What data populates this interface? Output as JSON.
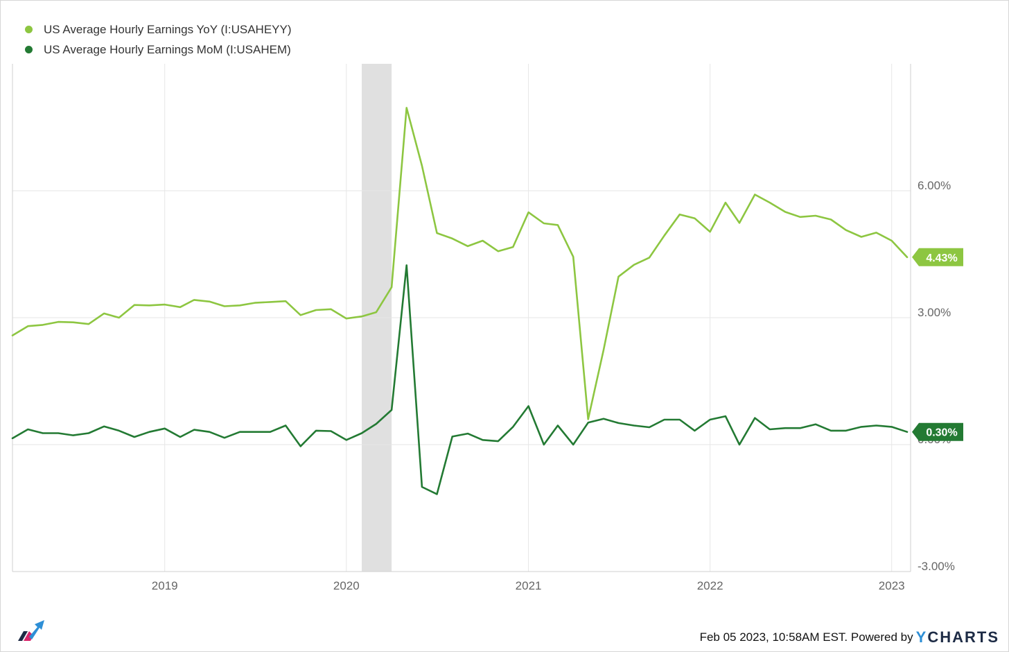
{
  "chart_data": {
    "type": "line",
    "series": [
      {
        "name": "US Average Hourly Earnings YoY (I:USAHEYY)",
        "color": "#8dc641",
        "end_label": "4.43%",
        "points": [
          [
            "2018-03-01",
            2.58
          ],
          [
            "2018-04-01",
            2.8
          ],
          [
            "2018-05-01",
            2.83
          ],
          [
            "2018-06-01",
            2.9
          ],
          [
            "2018-07-01",
            2.89
          ],
          [
            "2018-08-01",
            2.85
          ],
          [
            "2018-09-01",
            3.1
          ],
          [
            "2018-10-01",
            3.0
          ],
          [
            "2018-11-01",
            3.3
          ],
          [
            "2018-12-01",
            3.29
          ],
          [
            "2019-01-01",
            3.31
          ],
          [
            "2019-02-01",
            3.25
          ],
          [
            "2019-03-01",
            3.42
          ],
          [
            "2019-04-01",
            3.38
          ],
          [
            "2019-05-01",
            3.27
          ],
          [
            "2019-06-01",
            3.29
          ],
          [
            "2019-07-01",
            3.35
          ],
          [
            "2019-08-01",
            3.37
          ],
          [
            "2019-09-01",
            3.39
          ],
          [
            "2019-10-01",
            3.06
          ],
          [
            "2019-11-01",
            3.18
          ],
          [
            "2019-12-01",
            3.2
          ],
          [
            "2020-01-01",
            2.98
          ],
          [
            "2020-02-01",
            3.03
          ],
          [
            "2020-03-01",
            3.13
          ],
          [
            "2020-04-01",
            3.72
          ],
          [
            "2020-05-01",
            7.96
          ],
          [
            "2020-06-01",
            6.59
          ],
          [
            "2020-07-01",
            5.0
          ],
          [
            "2020-08-01",
            4.87
          ],
          [
            "2020-09-01",
            4.69
          ],
          [
            "2020-10-01",
            4.82
          ],
          [
            "2020-11-01",
            4.57
          ],
          [
            "2020-12-01",
            4.67
          ],
          [
            "2021-01-01",
            5.49
          ],
          [
            "2021-02-01",
            5.23
          ],
          [
            "2021-03-01",
            5.19
          ],
          [
            "2021-04-01",
            4.44
          ],
          [
            "2021-05-01",
            0.6
          ],
          [
            "2021-06-01",
            2.24
          ],
          [
            "2021-07-01",
            3.97
          ],
          [
            "2021-08-01",
            4.25
          ],
          [
            "2021-09-01",
            4.42
          ],
          [
            "2021-10-01",
            4.94
          ],
          [
            "2021-11-01",
            5.44
          ],
          [
            "2021-12-01",
            5.35
          ],
          [
            "2022-01-01",
            5.03
          ],
          [
            "2022-02-01",
            5.72
          ],
          [
            "2022-03-01",
            5.24
          ],
          [
            "2022-04-01",
            5.91
          ],
          [
            "2022-05-01",
            5.72
          ],
          [
            "2022-06-01",
            5.5
          ],
          [
            "2022-07-01",
            5.38
          ],
          [
            "2022-08-01",
            5.41
          ],
          [
            "2022-09-01",
            5.32
          ],
          [
            "2022-10-01",
            5.07
          ],
          [
            "2022-11-01",
            4.91
          ],
          [
            "2022-12-01",
            5.01
          ],
          [
            "2023-01-01",
            4.82
          ],
          [
            "2023-02-01",
            4.43
          ]
        ]
      },
      {
        "name": "US Average Hourly Earnings MoM (I:USAHEM)",
        "color": "#237a33",
        "end_label": "0.30%",
        "points": [
          [
            "2018-03-01",
            0.15
          ],
          [
            "2018-04-01",
            0.36
          ],
          [
            "2018-05-01",
            0.27
          ],
          [
            "2018-06-01",
            0.27
          ],
          [
            "2018-07-01",
            0.22
          ],
          [
            "2018-08-01",
            0.27
          ],
          [
            "2018-09-01",
            0.43
          ],
          [
            "2018-10-01",
            0.33
          ],
          [
            "2018-11-01",
            0.18
          ],
          [
            "2018-12-01",
            0.3
          ],
          [
            "2019-01-01",
            0.38
          ],
          [
            "2019-02-01",
            0.18
          ],
          [
            "2019-03-01",
            0.35
          ],
          [
            "2019-04-01",
            0.3
          ],
          [
            "2019-05-01",
            0.16
          ],
          [
            "2019-06-01",
            0.3
          ],
          [
            "2019-07-01",
            0.3
          ],
          [
            "2019-08-01",
            0.3
          ],
          [
            "2019-09-01",
            0.45
          ],
          [
            "2019-10-01",
            -0.04
          ],
          [
            "2019-11-01",
            0.33
          ],
          [
            "2019-12-01",
            0.32
          ],
          [
            "2020-01-01",
            0.11
          ],
          [
            "2020-02-01",
            0.27
          ],
          [
            "2020-03-01",
            0.49
          ],
          [
            "2020-04-01",
            0.82
          ],
          [
            "2020-05-01",
            4.24
          ],
          [
            "2020-06-01",
            -1.0
          ],
          [
            "2020-07-01",
            -1.17
          ],
          [
            "2020-08-01",
            0.19
          ],
          [
            "2020-09-01",
            0.26
          ],
          [
            "2020-10-01",
            0.11
          ],
          [
            "2020-11-01",
            0.08
          ],
          [
            "2020-12-01",
            0.42
          ],
          [
            "2021-01-01",
            0.91
          ],
          [
            "2021-02-01",
            0.0
          ],
          [
            "2021-03-01",
            0.45
          ],
          [
            "2021-04-01",
            0.0
          ],
          [
            "2021-05-01",
            0.52
          ],
          [
            "2021-06-01",
            0.61
          ],
          [
            "2021-07-01",
            0.51
          ],
          [
            "2021-08-01",
            0.45
          ],
          [
            "2021-09-01",
            0.41
          ],
          [
            "2021-10-01",
            0.59
          ],
          [
            "2021-11-01",
            0.59
          ],
          [
            "2021-12-01",
            0.33
          ],
          [
            "2022-01-01",
            0.59
          ],
          [
            "2022-02-01",
            0.67
          ],
          [
            "2022-03-01",
            0.0
          ],
          [
            "2022-04-01",
            0.63
          ],
          [
            "2022-05-01",
            0.36
          ],
          [
            "2022-06-01",
            0.39
          ],
          [
            "2022-07-01",
            0.39
          ],
          [
            "2022-08-01",
            0.48
          ],
          [
            "2022-09-01",
            0.33
          ],
          [
            "2022-10-01",
            0.33
          ],
          [
            "2022-11-01",
            0.42
          ],
          [
            "2022-12-01",
            0.45
          ],
          [
            "2023-01-01",
            0.42
          ],
          [
            "2023-02-01",
            0.3
          ]
        ]
      }
    ],
    "recession_band": {
      "start": "2020-02-01",
      "end": "2020-04-01",
      "color": "#e0e0e0"
    },
    "x_range": [
      "2018-03-01",
      "2023-02-08"
    ],
    "x_ticks": [
      {
        "date": "2019-01-01",
        "label": "2019"
      },
      {
        "date": "2020-01-01",
        "label": "2020"
      },
      {
        "date": "2021-01-01",
        "label": "2021"
      },
      {
        "date": "2022-01-01",
        "label": "2022"
      },
      {
        "date": "2023-01-01",
        "label": "2023"
      }
    ],
    "y_range": [
      -3.0,
      9.0
    ],
    "y_ticks": [
      {
        "value": 6.0,
        "label": "6.00%"
      },
      {
        "value": 3.0,
        "label": "3.00%"
      },
      {
        "value": 0.0,
        "label": "0.00%"
      },
      {
        "value": -3.0,
        "label": "-3.00%"
      }
    ],
    "grid": true,
    "legend_position": "top-left",
    "axis_position": "right"
  },
  "footer": {
    "timestamp": "Feb 05 2023, 10:58AM EST. Powered by",
    "brand_y": "Y",
    "brand_rest": "CHARTS"
  }
}
